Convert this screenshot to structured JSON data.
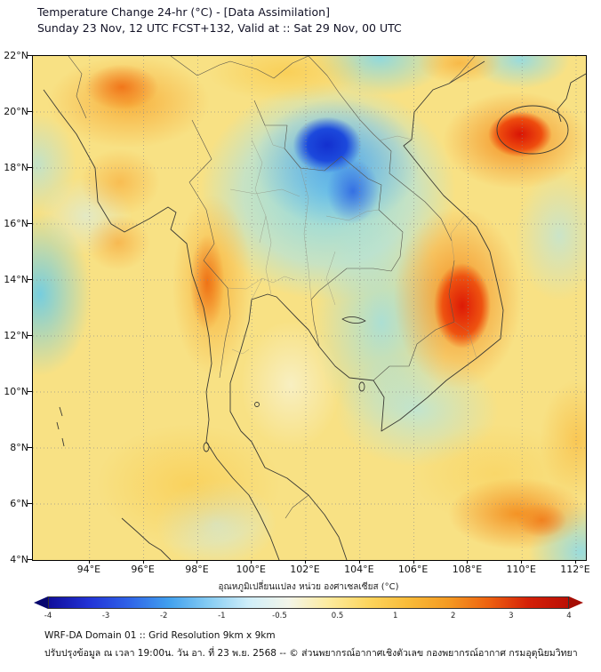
{
  "header": {
    "title": "Temperature Change 24-hr (°C) - [Data Assimilation]",
    "subtitle": "Sunday 23 Nov, 12 UTC FCST+132, Valid at :: Sat 29 Nov, 00 UTC"
  },
  "map": {
    "y_tick_labels": [
      "22°N",
      "20°N",
      "18°N",
      "16°N",
      "14°N",
      "12°N",
      "10°N",
      "8°N",
      "6°N",
      "4°N"
    ],
    "x_tick_labels": [
      "94°E",
      "96°E",
      "98°E",
      "100°E",
      "102°E",
      "104°E",
      "106°E",
      "108°E",
      "110°E",
      "112°E"
    ]
  },
  "colorbar": {
    "label": "อุณหภูมิเปลี่ยนแปลง หน่วย องศาเซลเซียส (°C)",
    "tick_labels": [
      "-4",
      "-3",
      "-2",
      "-1",
      "-0.5",
      "0.5",
      "1",
      "2",
      "3",
      "4"
    ],
    "left_arrow_color": "#07076e",
    "right_arrow_color": "#a50c03",
    "gradient_stops": [
      "#100e9b",
      "#2233d6",
      "#2f63e8",
      "#41a0ee",
      "#86ccf3",
      "#cfeef9",
      "#f3f5e9",
      "#fdeb9e",
      "#fdd55e",
      "#f9bb38",
      "#f49a22",
      "#ee6210",
      "#d42108",
      "#bb0f05"
    ]
  },
  "footer": {
    "line1": "WRF-DA Domain 01 :: Grid Resolution 9km x 9km",
    "line2": "ปรับปรุงข้อมูล ณ เวลา 19:00น. วัน อา. ที่ 23 พ.ย. 2568 -- © ส่วนพยากรณ์อากาศเชิงตัวเลข กองพยากรณ์อากาศ กรมอุตุนิยมวิทยา"
  },
  "chart_data": {
    "type": "heatmap",
    "title": "Temperature Change 24-hr (°C) - [Data Assimilation]",
    "init_time": "Sunday 23 Nov, 12 UTC",
    "forecast": "FCST+132",
    "valid_time": "Sat 29 Nov, 00 UTC",
    "units": "°C",
    "x_range_deg_east": [
      92,
      112.5
    ],
    "y_range_deg_north": [
      4,
      22
    ],
    "colorbar_ticks": [
      -4,
      -3,
      -2,
      -1,
      -0.5,
      0.5,
      1,
      2,
      3,
      4
    ],
    "anomaly_centers": [
      {
        "lon": 102.8,
        "lat": 18.9,
        "value": -4
      },
      {
        "lon": 103.8,
        "lat": 17.2,
        "value": -2.5
      },
      {
        "lon": 109.9,
        "lat": 19.4,
        "value": 4
      },
      {
        "lon": 107.7,
        "lat": 13.2,
        "value": 4
      },
      {
        "lon": 98.2,
        "lat": 14.0,
        "value": 2.5
      },
      {
        "lon": 95.2,
        "lat": 21.0,
        "value": 2.5
      },
      {
        "lon": 109.5,
        "lat": 5.8,
        "value": 2.5
      },
      {
        "lon": 92.3,
        "lat": 13.5,
        "value": -1.5
      },
      {
        "lon": 104.7,
        "lat": 12.0,
        "value": -1
      },
      {
        "lon": 112.0,
        "lat": 4.5,
        "value": -1.5
      },
      {
        "lon": 104.7,
        "lat": 21.9,
        "value": -1.5
      },
      {
        "lon": 109.8,
        "lat": 21.8,
        "value": -1.5
      }
    ]
  }
}
